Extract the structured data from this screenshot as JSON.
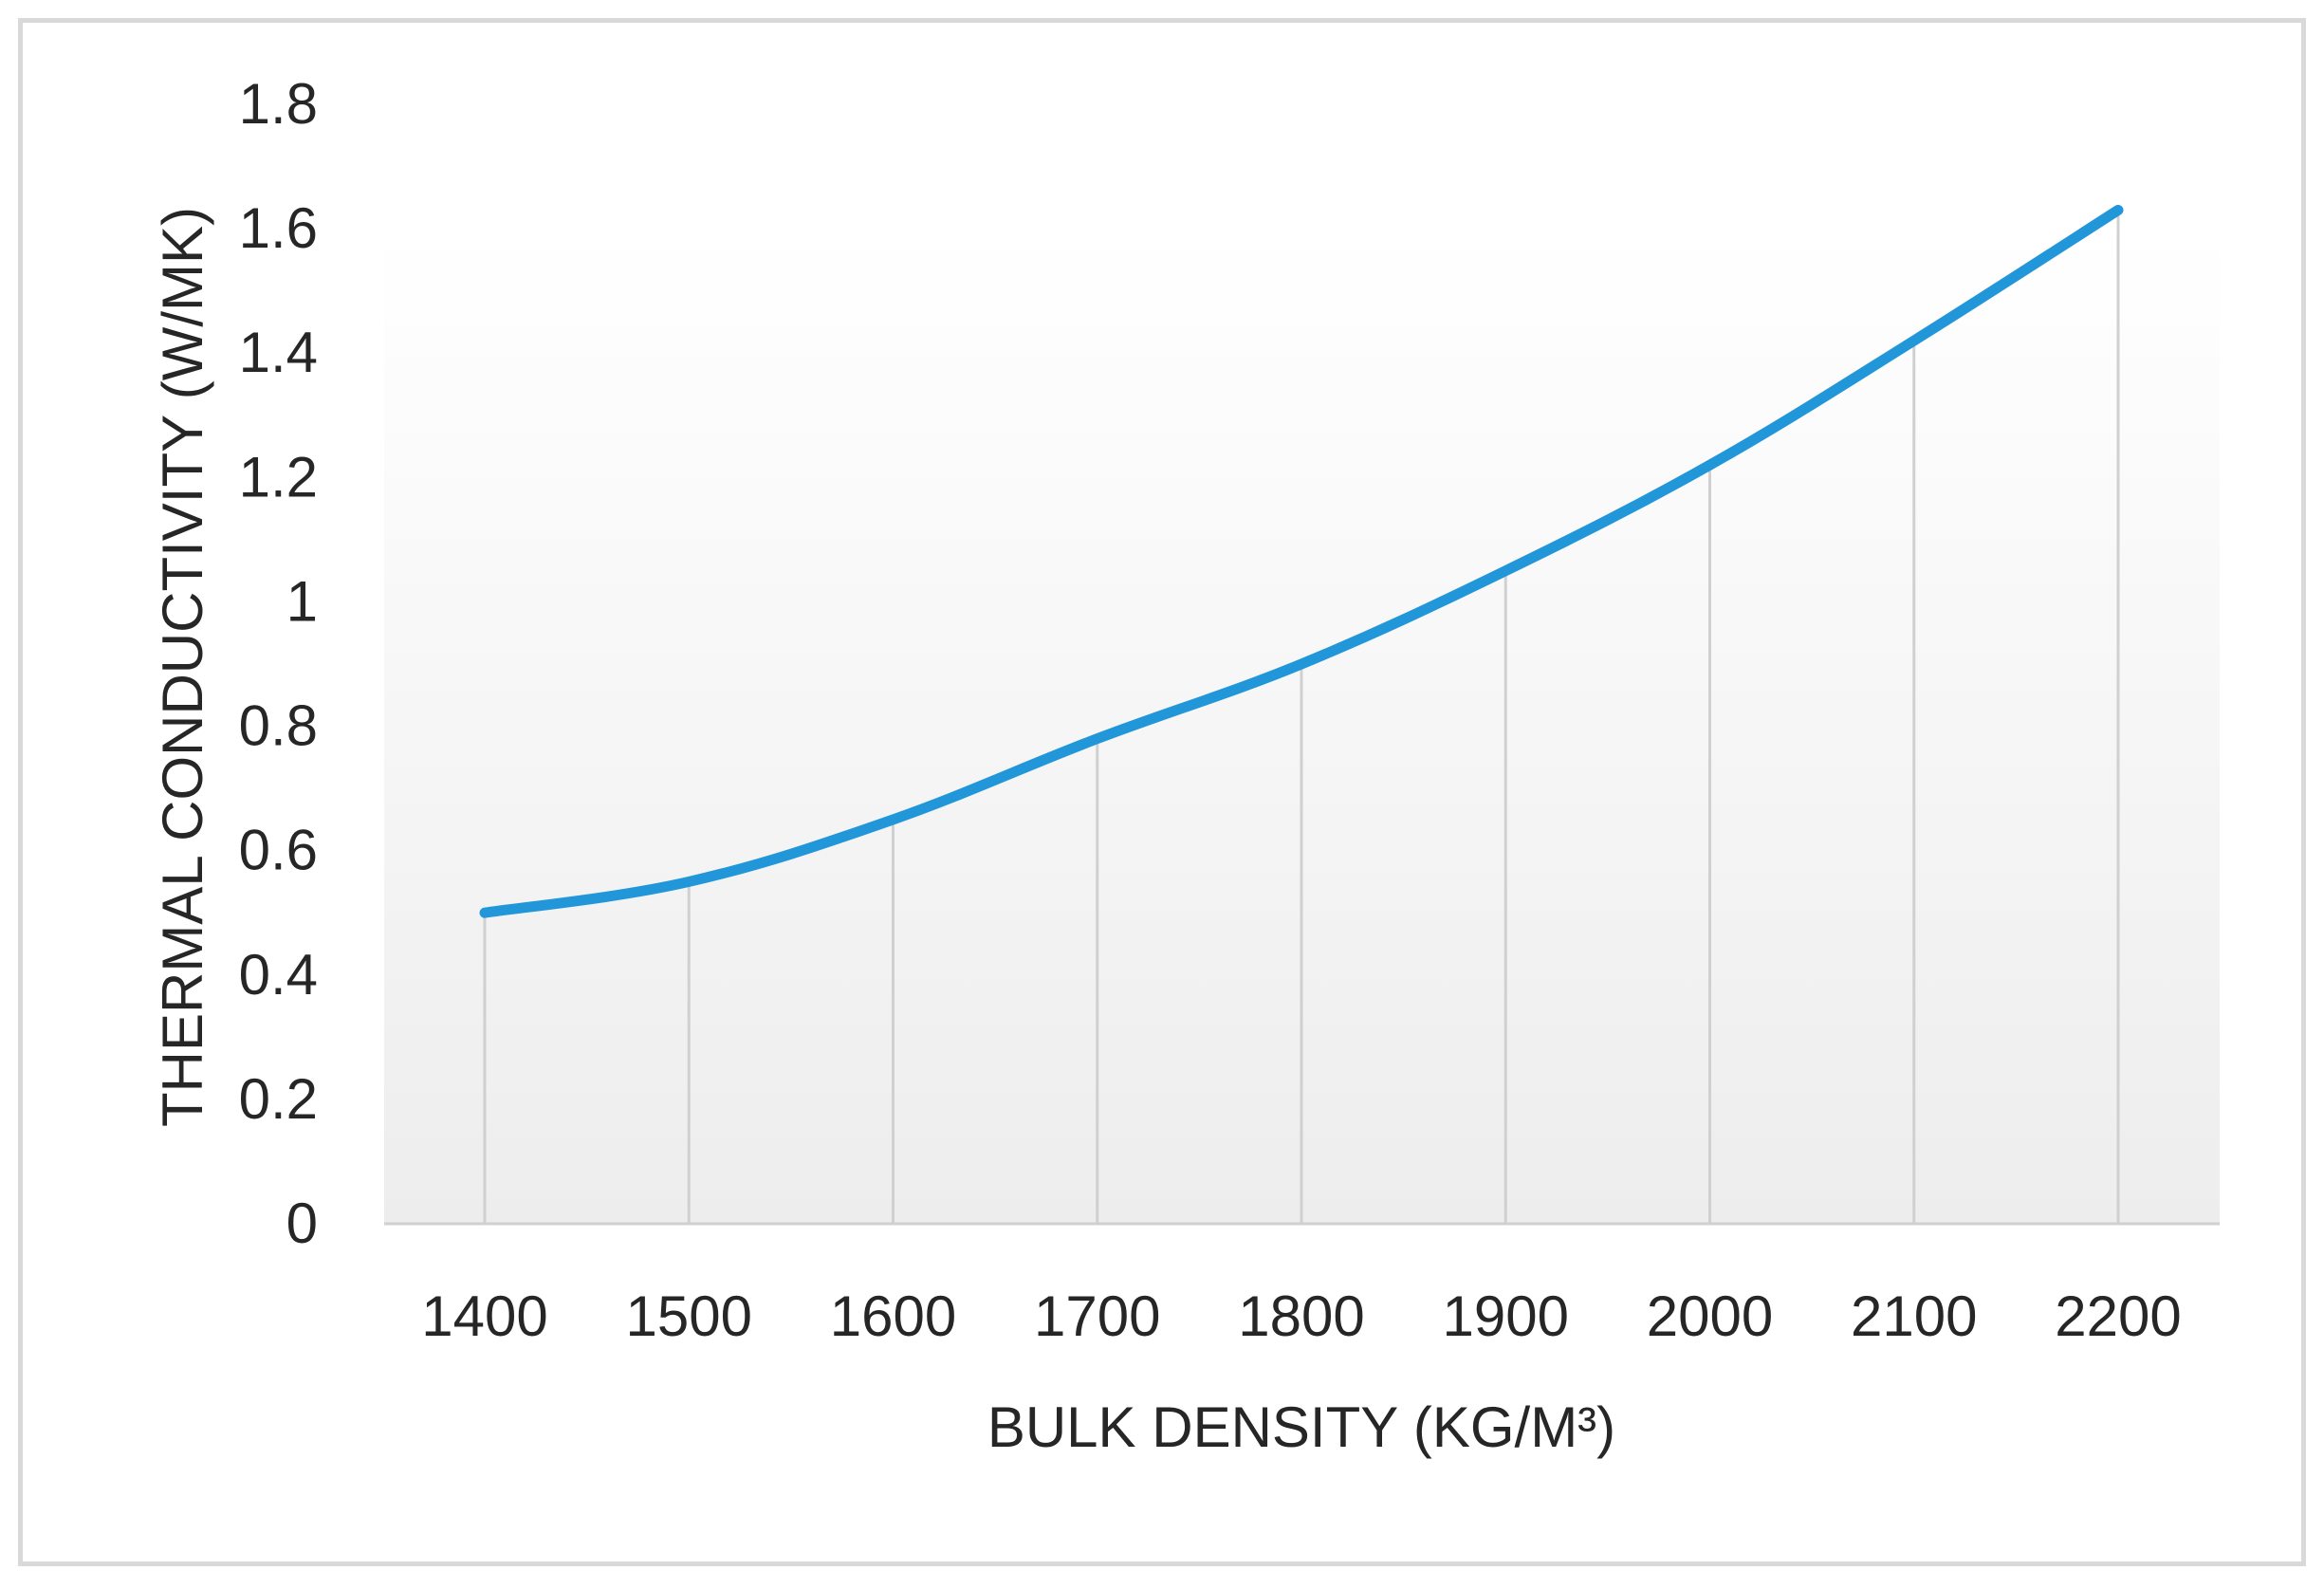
{
  "chart_data": {
    "type": "line",
    "title": "",
    "xlabel": "BULK DENSITY (KG/M³)",
    "ylabel": "THERMAL CONDUCTIVITY (W/MK)",
    "x": [
      1400,
      1500,
      1600,
      1700,
      1800,
      1900,
      2000,
      2100,
      2200
    ],
    "x_tick_labels": [
      "1400",
      "1500",
      "1600",
      "1700",
      "1800",
      "1900",
      "2000",
      "2100",
      "2200"
    ],
    "y_tick_values": [
      0,
      0.2,
      0.4,
      0.6,
      0.8,
      1,
      1.2,
      1.4,
      1.6,
      1.8
    ],
    "y_tick_labels": [
      "0",
      "0.2",
      "0.4",
      "0.6",
      "0.8",
      "1",
      "1.2",
      "1.4",
      "1.6",
      "1.8"
    ],
    "ylim": [
      0,
      1.8
    ],
    "series": [
      {
        "values": [
          0.5,
          0.55,
          0.65,
          0.78,
          0.9,
          1.05,
          1.22,
          1.42,
          1.63
        ],
        "color": "#2196d9"
      }
    ],
    "drop_lines": true,
    "grid": false,
    "legend": "none",
    "plot_background": "light gray gradient",
    "colors": {
      "line": "#2196d9",
      "drop_line": "#d0d0d0",
      "axis": "#d0d0d0",
      "text": "#262626",
      "frame": "#d9d9d9"
    }
  }
}
